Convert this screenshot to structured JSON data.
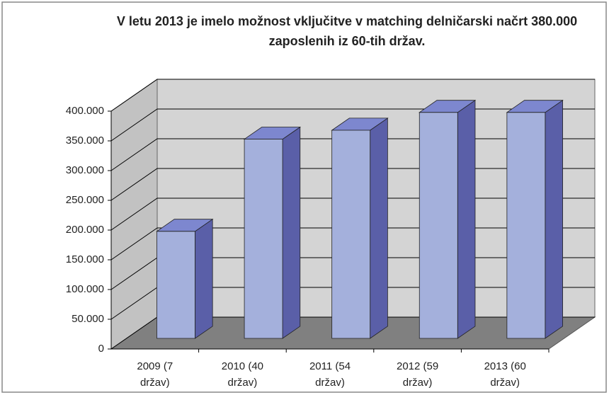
{
  "chart_data": {
    "type": "bar3d",
    "title": "V letu 2013 je imelo možnost vključitve v matching delničarski načrt 380.000 zaposlenih iz 60-tih držav.",
    "categories": [
      "2009 (7 držav)",
      "2010 (40 držav)",
      "2011 (54 držav)",
      "2012 (59 držav)",
      "2013 (60 držav)"
    ],
    "values": [
      180000,
      335000,
      350000,
      380000,
      380000
    ],
    "color": "#a4b0dc",
    "ylim": [
      0,
      400000
    ],
    "yticks": [
      0,
      {
        "value": 50000,
        "label": "50.000"
      },
      {
        "value": 100000,
        "label": "100.000"
      },
      {
        "value": 150000,
        "label": "150.000"
      },
      {
        "value": 200000,
        "label": "200.000"
      },
      {
        "value": 250000,
        "label": "250.000"
      },
      {
        "value": 300000,
        "label": "300.000"
      },
      {
        "value": 350000,
        "label": "350.000"
      },
      {
        "value": 400000,
        "label": "400.000"
      }
    ],
    "grid": true
  }
}
